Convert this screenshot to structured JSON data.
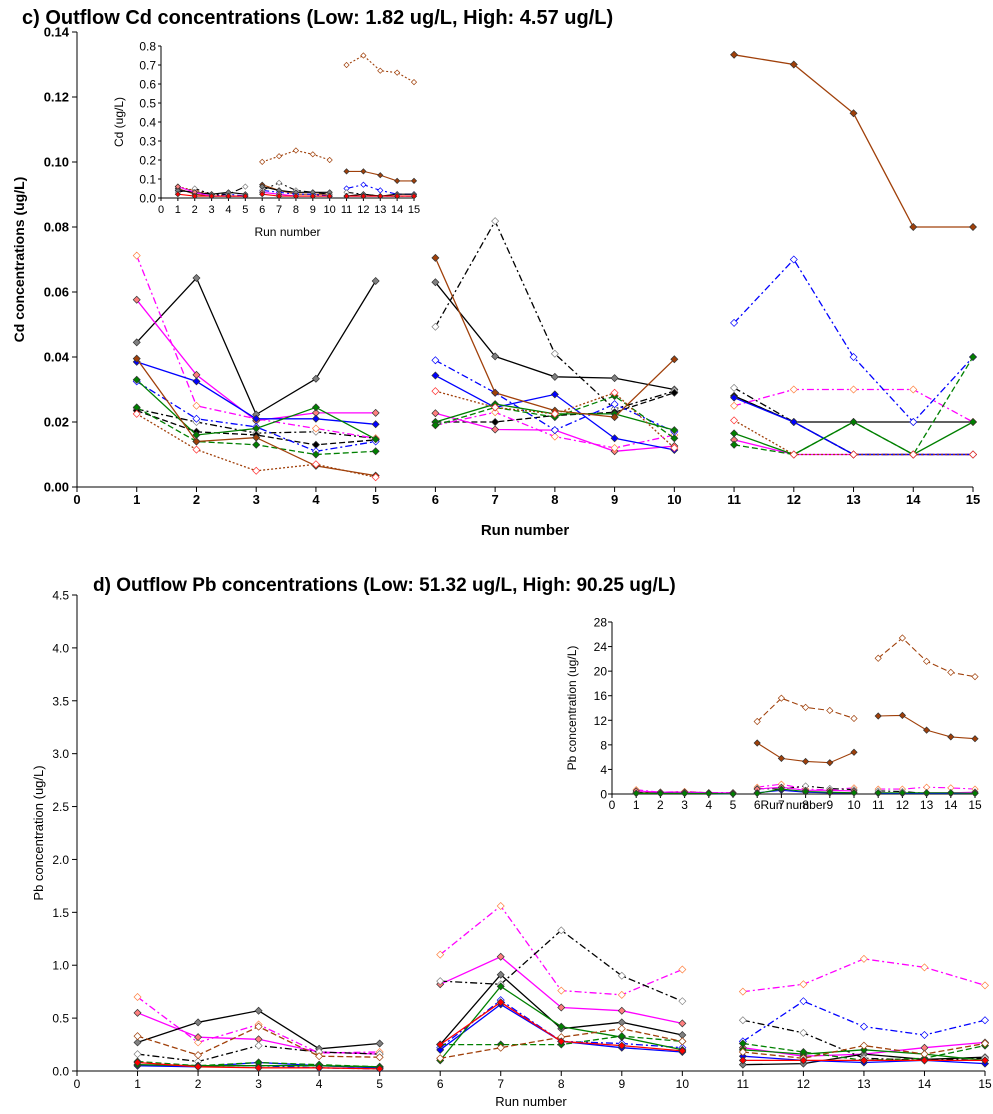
{
  "chart_data": [
    {
      "type": "line",
      "title": "c) Outflow Cd concentrations  (Low: 1.82 ug/L, High: 4.57 ug/L)",
      "xlabel": "Run number",
      "ylabel": "Cd concentrations (ug/L)",
      "xlim": [
        0,
        15
      ],
      "ylim": [
        0,
        0.14
      ],
      "x_ticks": [
        "0",
        "1",
        "2",
        "3",
        "4",
        "5",
        "6",
        "7",
        "8",
        "9",
        "10",
        "11",
        "12",
        "13",
        "14",
        "15"
      ],
      "y_ticks": [
        "0.00",
        "0.02",
        "0.04",
        "0.06",
        "0.08",
        "0.10",
        "0.12",
        "0.14"
      ],
      "grid": false,
      "series": [
        {
          "color": "#000000",
          "dash": "solid",
          "marker": "#808080",
          "open": false,
          "values": [
            0.0445,
            0.0643,
            0.0223,
            0.0333,
            0.0634,
            0.063,
            0.0402,
            0.0339,
            0.0335,
            0.03,
            0.028,
            0.02,
            0.02,
            0.02,
            0.02
          ]
        },
        {
          "color": "#000000",
          "dash": "dashdot",
          "marker": "#808080",
          "open": true,
          "values": [
            0.024,
            0.02,
            0.0166,
            0.017,
            0.015,
            0.0493,
            0.0818,
            0.041,
            0.024,
            0.0295,
            0.0305,
            0.02,
            0.01,
            0.01,
            0.01
          ]
        },
        {
          "color": "#000000",
          "dash": "dash",
          "marker": "#000000",
          "open": false,
          "values": [
            0.0235,
            0.017,
            0.016,
            0.013,
            0.0145,
            0.02,
            0.02,
            0.022,
            0.023,
            0.029,
            0.028,
            0.02,
            0.01,
            0.01,
            0.01
          ]
        },
        {
          "color": "#FF00FF",
          "dash": "solid",
          "marker": "#FF7F7F",
          "open": false,
          "values": [
            0.0576,
            0.0345,
            0.0204,
            0.0228,
            0.0228,
            0.0227,
            0.0177,
            0.0175,
            0.011,
            0.0126,
            0.0145,
            0.01,
            0.01,
            0.01,
            0.01
          ]
        },
        {
          "color": "#FF00FF",
          "dash": "dashdot",
          "marker": "#FF8040",
          "open": true,
          "values": [
            0.0712,
            0.025,
            0.021,
            0.018,
            0.015,
            0.019,
            0.023,
            0.0155,
            0.012,
            0.016,
            0.025,
            0.03,
            0.03,
            0.03,
            0.02
          ]
        },
        {
          "color": "#0000FF",
          "dash": "solid",
          "marker": "#0000FF",
          "open": false,
          "values": [
            0.0385,
            0.0325,
            0.021,
            0.021,
            0.0193,
            0.0343,
            0.0245,
            0.0285,
            0.015,
            0.0114,
            0.0275,
            0.02,
            0.01,
            0.01,
            0.01
          ]
        },
        {
          "color": "#0000FF",
          "dash": "dashdot",
          "marker": "#0000FF",
          "open": true,
          "values": [
            0.0325,
            0.021,
            0.0185,
            0.011,
            0.014,
            0.039,
            0.029,
            0.0175,
            0.0255,
            0.017,
            0.0505,
            0.07,
            0.04,
            0.02,
            0.04
          ]
        },
        {
          "color": "#008000",
          "dash": "solid",
          "marker": "#008000",
          "open": false,
          "values": [
            0.033,
            0.016,
            0.018,
            0.0245,
            0.0147,
            0.02,
            0.0255,
            0.0225,
            0.0225,
            0.0175,
            0.0165,
            0.01,
            0.02,
            0.01,
            0.02
          ]
        },
        {
          "color": "#008000",
          "dash": "dash",
          "marker": "#008000",
          "open": false,
          "values": [
            0.0245,
            0.014,
            0.013,
            0.01,
            0.011,
            0.019,
            0.0245,
            0.0215,
            0.028,
            0.015,
            0.013,
            0.01,
            0.02,
            0.01,
            0.04
          ]
        },
        {
          "color": "#A0400A",
          "dash": "solid",
          "marker": "#A0400A",
          "open": false,
          "values": [
            0.0395,
            0.014,
            0.0152,
            0.0065,
            0.0035,
            0.0705,
            0.029,
            0.0235,
            0.0215,
            0.0393,
            0.133,
            0.13,
            0.115,
            0.08,
            0.08
          ]
        },
        {
          "color": "#A0400A",
          "dash": "dot",
          "marker": "#FF3030",
          "open": true,
          "values": [
            0.0225,
            0.0115,
            0.005,
            0.007,
            0.003,
            0.0295,
            0.0245,
            0.0225,
            0.029,
            0.012,
            0.0205,
            0.01,
            0.01,
            0.01,
            0.01
          ]
        }
      ],
      "inset": {
        "xlabel": "Run number",
        "ylabel": "Cd (ug/L)",
        "xlim": [
          0,
          15
        ],
        "ylim": [
          0,
          0.8
        ],
        "x_ticks": [
          "0",
          "1",
          "2",
          "3",
          "4",
          "5",
          "6",
          "7",
          "8",
          "9",
          "10",
          "11",
          "12",
          "13",
          "14",
          "15"
        ],
        "y_ticks": [
          "0.0",
          "0.1",
          "0.2",
          "0.3",
          "0.4",
          "0.5",
          "0.6",
          "0.7",
          "0.8"
        ],
        "series": [
          {
            "color": "#A0400A",
            "dash": "dot",
            "marker": "#A0400A",
            "open": true,
            "values": [
              0.06,
              0.04,
              0.02,
              0.01,
              0.01,
              0.19,
              0.22,
              0.25,
              0.23,
              0.2,
              0.7,
              0.75,
              0.67,
              0.66,
              0.61
            ]
          },
          {
            "color": "#A0400A",
            "dash": "solid",
            "marker": "#A0400A",
            "open": false,
            "values": [
              0.05,
              0.02,
              0.01,
              0.01,
              0.01,
              0.07,
              0.04,
              0.02,
              0.02,
              0.02,
              0.14,
              0.14,
              0.12,
              0.09,
              0.09
            ]
          },
          {
            "color": "#0000FF",
            "dash": "dashdot",
            "marker": "#0000FF",
            "open": true,
            "values": [
              0.04,
              0.03,
              0.01,
              0.02,
              0.01,
              0.04,
              0.03,
              0.02,
              0.02,
              0.01,
              0.05,
              0.07,
              0.04,
              0.02,
              0.02
            ]
          },
          {
            "color": "#000000",
            "dash": "dashdot",
            "marker": "#808080",
            "open": true,
            "values": [
              0.03,
              0.05,
              0.02,
              0.02,
              0.06,
              0.04,
              0.08,
              0.04,
              0.03,
              0.02,
              0.03,
              0.02,
              0.01,
              0.01,
              0.01
            ]
          },
          {
            "color": "#000000",
            "dash": "solid",
            "marker": "#808080",
            "open": false,
            "values": [
              0.04,
              0.03,
              0.02,
              0.03,
              0.02,
              0.06,
              0.04,
              0.03,
              0.03,
              0.03,
              0.01,
              0.02,
              0.01,
              0.02,
              0.02
            ]
          },
          {
            "color": "#FF00FF",
            "dash": "solid",
            "marker": "#FF7F7F",
            "open": false,
            "values": [
              0.06,
              0.03,
              0.01,
              0.01,
              0.01,
              0.03,
              0.02,
              0.01,
              0.01,
              0.01,
              0.01,
              0.01,
              0.01,
              0.01,
              0.01
            ]
          },
          {
            "color": "#FF0000",
            "dash": "solid",
            "marker": "#FF0000",
            "open": false,
            "values": [
              0.02,
              0.01,
              0.01,
              0.01,
              0.01,
              0.02,
              0.01,
              0.01,
              0.01,
              0.01,
              0.01,
              0.01,
              0.01,
              0.01,
              0.01
            ]
          }
        ]
      }
    },
    {
      "type": "line",
      "title": "d) Outflow Pb concentrations  (Low: 51.32 ug/L, High: 90.25 ug/L)",
      "xlabel": "Run number",
      "ylabel": "Pb concentration (ug/L)",
      "xlim": [
        0,
        15
      ],
      "ylim": [
        0,
        4.5
      ],
      "x_ticks": [
        "0",
        "1",
        "2",
        "3",
        "4",
        "5",
        "6",
        "7",
        "8",
        "9",
        "10",
        "11",
        "12",
        "13",
        "14",
        "15"
      ],
      "y_ticks": [
        "0.0",
        "0.5",
        "1.0",
        "1.5",
        "2.0",
        "2.5",
        "3.0",
        "3.5",
        "4.0",
        "4.5"
      ],
      "grid": false,
      "series": [
        {
          "color": "#FF00FF",
          "dash": "dashdot",
          "marker": "#FF8040",
          "open": true,
          "values": [
            0.7,
            0.27,
            0.44,
            0.17,
            0.18,
            1.1,
            1.56,
            0.76,
            0.72,
            0.96,
            0.75,
            0.82,
            1.06,
            0.98,
            0.81
          ]
        },
        {
          "color": "#FF00FF",
          "dash": "solid",
          "marker": "#FF7F7F",
          "open": false,
          "values": [
            0.55,
            0.32,
            0.3,
            0.18,
            0.16,
            0.82,
            1.08,
            0.6,
            0.57,
            0.45,
            0.22,
            0.14,
            0.16,
            0.22,
            0.27
          ]
        },
        {
          "color": "#000000",
          "dash": "solid",
          "marker": "#808080",
          "open": false,
          "values": [
            0.27,
            0.46,
            0.57,
            0.21,
            0.26,
            0.25,
            0.91,
            0.4,
            0.46,
            0.34,
            0.06,
            0.07,
            0.16,
            0.11,
            0.13
          ]
        },
        {
          "color": "#000000",
          "dash": "dashdot",
          "marker": "#808080",
          "open": true,
          "values": [
            0.16,
            0.09,
            0.24,
            0.18,
            0.16,
            0.85,
            0.82,
            1.33,
            0.9,
            0.66,
            0.48,
            0.36,
            0.12,
            0.1,
            0.12
          ]
        },
        {
          "color": "#0000FF",
          "dash": "dashdot",
          "marker": "#0000FF",
          "open": true,
          "values": [
            0.05,
            0.05,
            0.05,
            0.03,
            0.02,
            0.22,
            0.67,
            0.28,
            0.26,
            0.22,
            0.28,
            0.66,
            0.42,
            0.34,
            0.48
          ]
        },
        {
          "color": "#0000FF",
          "dash": "solid",
          "marker": "#0000FF",
          "open": false,
          "values": [
            0.05,
            0.04,
            0.08,
            0.05,
            0.03,
            0.2,
            0.63,
            0.28,
            0.22,
            0.18,
            0.14,
            0.1,
            0.08,
            0.1,
            0.07
          ]
        },
        {
          "color": "#008000",
          "dash": "solid",
          "marker": "#008000",
          "open": false,
          "values": [
            0.06,
            0.05,
            0.05,
            0.05,
            0.04,
            0.1,
            0.8,
            0.42,
            0.32,
            0.2,
            0.2,
            0.16,
            0.2,
            0.16,
            0.1
          ]
        },
        {
          "color": "#008000",
          "dash": "dash",
          "marker": "#008000",
          "open": false,
          "values": [
            0.09,
            0.05,
            0.08,
            0.06,
            0.04,
            0.25,
            0.25,
            0.25,
            0.33,
            0.28,
            0.26,
            0.18,
            0.1,
            0.12,
            0.24
          ]
        },
        {
          "color": "#A0400A",
          "dash": "dash",
          "marker": "#A0400A",
          "open": true,
          "values": [
            0.33,
            0.15,
            0.42,
            0.14,
            0.13,
            0.12,
            0.22,
            0.32,
            0.4,
            0.28,
            0.18,
            0.12,
            0.24,
            0.16,
            0.26
          ]
        },
        {
          "color": "#FF0000",
          "dash": "solid",
          "marker": "#FF0000",
          "open": false,
          "values": [
            0.08,
            0.04,
            0.03,
            0.03,
            0.02,
            0.25,
            0.65,
            0.28,
            0.24,
            0.19,
            0.1,
            0.1,
            0.1,
            0.1,
            0.1
          ]
        }
      ],
      "inset": {
        "xlabel": "Run number",
        "ylabel": "Pb concentration (ug/L)",
        "xlim": [
          0,
          15
        ],
        "ylim": [
          0,
          28
        ],
        "x_ticks": [
          "0",
          "1",
          "2",
          "3",
          "4",
          "5",
          "6",
          "7",
          "8",
          "9",
          "10",
          "11",
          "12",
          "13",
          "14",
          "15"
        ],
        "y_ticks": [
          "0",
          "4",
          "8",
          "12",
          "16",
          "20",
          "24",
          "28"
        ],
        "series": [
          {
            "color": "#A0400A",
            "dash": "dash",
            "marker": "#A0400A",
            "open": true,
            "values": [
              0.3,
              0.2,
              0.4,
              0.2,
              0.1,
              11.8,
              15.6,
              14.1,
              13.6,
              12.3,
              22.1,
              25.4,
              21.6,
              19.8,
              19.1
            ]
          },
          {
            "color": "#A0400A",
            "dash": "solid",
            "marker": "#A0400A",
            "open": false,
            "values": [
              0.2,
              0.2,
              0.3,
              0.1,
              0.1,
              8.3,
              5.8,
              5.3,
              5.1,
              6.8,
              12.7,
              12.8,
              10.4,
              9.3,
              9.0
            ]
          },
          {
            "color": "#FF00FF",
            "dash": "dashdot",
            "marker": "#FF8040",
            "open": true,
            "values": [
              0.7,
              0.3,
              0.4,
              0.2,
              0.2,
              1.1,
              1.6,
              0.8,
              0.7,
              1.0,
              0.8,
              0.8,
              1.1,
              1.0,
              0.8
            ]
          },
          {
            "color": "#000000",
            "dash": "dashdot",
            "marker": "#808080",
            "open": true,
            "values": [
              0.2,
              0.1,
              0.2,
              0.2,
              0.2,
              0.9,
              0.8,
              1.3,
              0.9,
              0.7,
              0.5,
              0.4,
              0.1,
              0.1,
              0.1
            ]
          },
          {
            "color": "#FF00FF",
            "dash": "solid",
            "marker": "#FF7F7F",
            "open": false,
            "values": [
              0.5,
              0.3,
              0.3,
              0.2,
              0.2,
              0.8,
              1.1,
              0.6,
              0.6,
              0.5,
              0.2,
              0.1,
              0.2,
              0.2,
              0.3
            ]
          },
          {
            "color": "#0000FF",
            "dash": "solid",
            "marker": "#0000FF",
            "open": false,
            "values": [
              0.1,
              0.1,
              0.1,
              0.1,
              0.0,
              0.2,
              0.6,
              0.3,
              0.2,
              0.2,
              0.1,
              0.1,
              0.1,
              0.1,
              0.1
            ]
          },
          {
            "color": "#008000",
            "dash": "solid",
            "marker": "#008000",
            "open": false,
            "values": [
              0.1,
              0.1,
              0.1,
              0.1,
              0.0,
              0.1,
              0.8,
              0.4,
              0.3,
              0.2,
              0.2,
              0.2,
              0.2,
              0.2,
              0.1
            ]
          }
        ]
      }
    }
  ]
}
